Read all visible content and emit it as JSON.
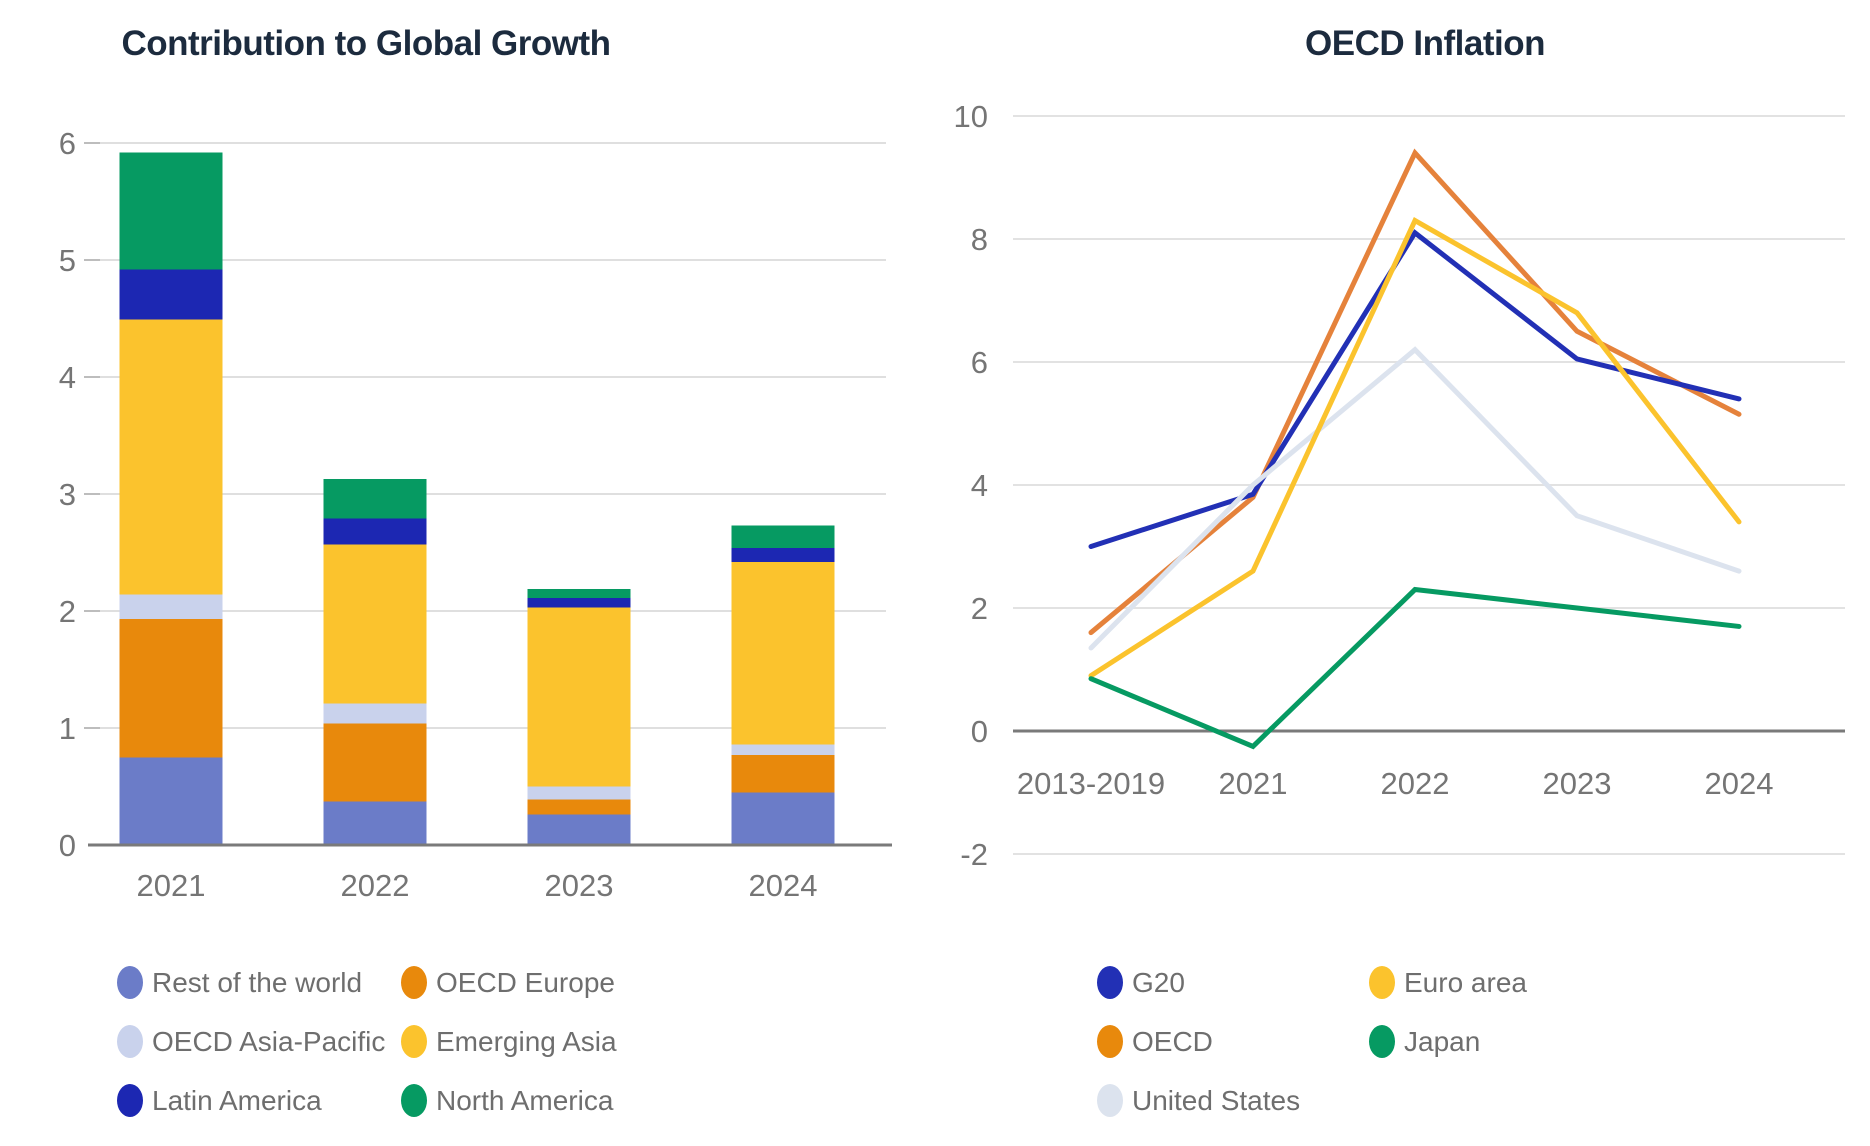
{
  "chart_data": [
    {
      "id": "global-growth",
      "type": "bar",
      "stacked": true,
      "title": "Contribution to Global Growth",
      "categories": [
        "2021",
        "2022",
        "2023",
        "2024"
      ],
      "ylim": [
        0,
        6
      ],
      "y_ticks": [
        0,
        1,
        2,
        3,
        4,
        5,
        6
      ],
      "grid": true,
      "legend_position": "bottom",
      "series": [
        {
          "name": "Rest of the world",
          "color": "#6B7CC8",
          "values": [
            0.75,
            0.37,
            0.26,
            0.45
          ]
        },
        {
          "name": "OECD Europe",
          "color": "#E8890C",
          "values": [
            1.18,
            0.67,
            0.13,
            0.32
          ]
        },
        {
          "name": "OECD Asia-Pacific",
          "color": "#C9D2EC",
          "values": [
            0.21,
            0.17,
            0.11,
            0.09
          ]
        },
        {
          "name": "Emerging Asia",
          "color": "#FBC32D",
          "values": [
            2.35,
            1.36,
            1.53,
            1.56
          ]
        },
        {
          "name": "Latin America",
          "color": "#1C27B2",
          "values": [
            0.43,
            0.22,
            0.08,
            0.12
          ]
        },
        {
          "name": "North America",
          "color": "#069A62",
          "values": [
            1.0,
            0.34,
            0.08,
            0.19
          ]
        }
      ],
      "totals": [
        5.92,
        3.13,
        2.19,
        2.73
      ],
      "legend_columns": [
        [
          {
            "label": "Rest of the world",
            "color": "#6B7CC8"
          },
          {
            "label": "OECD Asia-Pacific",
            "color": "#C9D2EC"
          },
          {
            "label": "Latin America",
            "color": "#1C27B2"
          }
        ],
        [
          {
            "label": "OECD Europe",
            "color": "#E8890C"
          },
          {
            "label": "Emerging Asia",
            "color": "#FBC32D"
          },
          {
            "label": "North America",
            "color": "#069A62"
          }
        ]
      ]
    },
    {
      "id": "oecd-inflation",
      "type": "line",
      "title": "OECD Inflation",
      "x": [
        "2013-2019",
        "2021",
        "2022",
        "2023",
        "2024"
      ],
      "ylim": [
        -2,
        10
      ],
      "y_ticks": [
        -2,
        0,
        2,
        4,
        6,
        8,
        10
      ],
      "grid": true,
      "zero_axis": true,
      "legend_position": "bottom",
      "series": [
        {
          "name": "OECD",
          "color": "#E5823B",
          "values": [
            1.6,
            3.8,
            9.4,
            6.5,
            5.15
          ]
        },
        {
          "name": "G20",
          "color": "#2230B5",
          "values": [
            3.0,
            3.85,
            8.1,
            6.05,
            5.4
          ]
        },
        {
          "name": "United States",
          "color": "#DCE3EE",
          "values": [
            1.35,
            4.0,
            6.2,
            3.5,
            2.6
          ]
        },
        {
          "name": "Euro area",
          "color": "#FBC32D",
          "values": [
            0.9,
            2.6,
            8.3,
            6.8,
            3.4
          ]
        },
        {
          "name": "Japan",
          "color": "#069A62",
          "values": [
            0.85,
            -0.25,
            2.3,
            2.0,
            1.7
          ]
        }
      ],
      "legend_columns": [
        [
          {
            "label": "G20",
            "color": "#2230B5"
          },
          {
            "label": "OECD",
            "color": "#E8890C"
          },
          {
            "label": "United States",
            "color": "#DCE3EE"
          }
        ],
        [
          {
            "label": "Euro area",
            "color": "#FBC32D"
          },
          {
            "label": "Japan",
            "color": "#069A62"
          }
        ]
      ]
    }
  ],
  "titles": {
    "left": "Contribution to Global Growth",
    "right": "OECD Inflation"
  }
}
